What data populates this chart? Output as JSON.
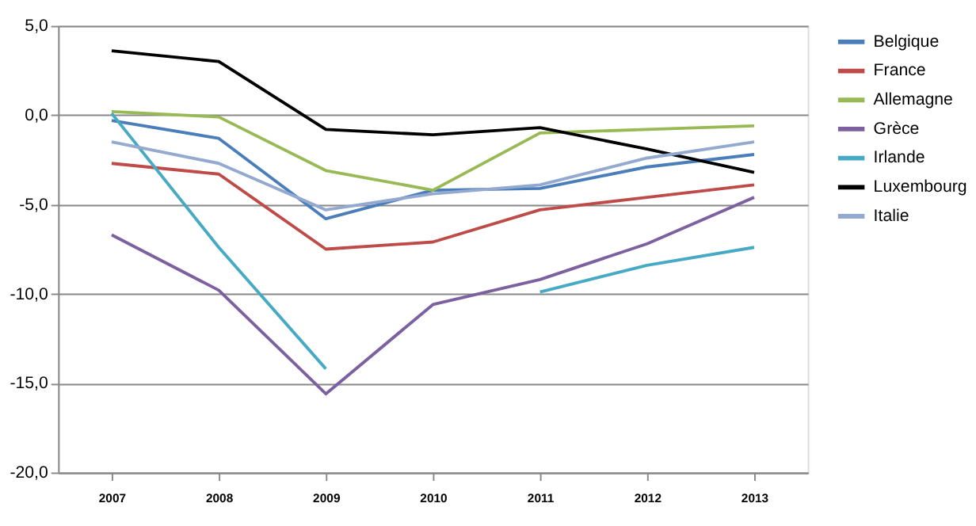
{
  "chart_data": {
    "type": "line",
    "categories": [
      "2007",
      "2008",
      "2009",
      "2010",
      "2011",
      "2012",
      "2013"
    ],
    "series": [
      {
        "name": "Belgique",
        "color": "#4a7ebb",
        "values": [
          -0.3,
          -1.3,
          -5.8,
          -4.2,
          -4.1,
          -2.9,
          -2.2
        ]
      },
      {
        "name": "France",
        "color": "#be4b48",
        "values": [
          -2.7,
          -3.3,
          -7.5,
          -7.1,
          -5.3,
          -4.6,
          -3.9
        ]
      },
      {
        "name": "Allemagne",
        "color": "#98b954",
        "values": [
          0.2,
          -0.1,
          -3.1,
          -4.2,
          -1.0,
          -0.8,
          -0.6
        ]
      },
      {
        "name": "Grèce",
        "color": "#7d60a0",
        "values": [
          -6.7,
          -9.8,
          -15.6,
          -10.6,
          -9.2,
          -7.2,
          -4.6
        ]
      },
      {
        "name": "Irlande",
        "color": "#46aac5",
        "values": [
          0.1,
          -7.4,
          -14.2,
          null,
          -9.9,
          -8.4,
          -7.4
        ]
      },
      {
        "name": "Luxembourg",
        "color": "#000000",
        "values": [
          3.6,
          3.0,
          -0.8,
          -1.1,
          -0.7,
          -1.9,
          -3.2
        ]
      },
      {
        "name": "Italie",
        "color": "#93a9cf",
        "values": [
          -1.5,
          -2.7,
          -5.3,
          -4.4,
          -3.9,
          -2.4,
          -1.5
        ]
      }
    ],
    "ylim": [
      -20,
      5
    ],
    "yticks": [
      {
        "value": -20,
        "label": "-20,0"
      },
      {
        "value": -15,
        "label": "-15,0"
      },
      {
        "value": -10,
        "label": "-10,0"
      },
      {
        "value": -5,
        "label": "-5,0"
      },
      {
        "value": 0,
        "label": "0,0"
      },
      {
        "value": 5,
        "label": "5,0"
      }
    ],
    "grid": "y",
    "legend": "right",
    "marker": "none",
    "line_style": "solid"
  }
}
